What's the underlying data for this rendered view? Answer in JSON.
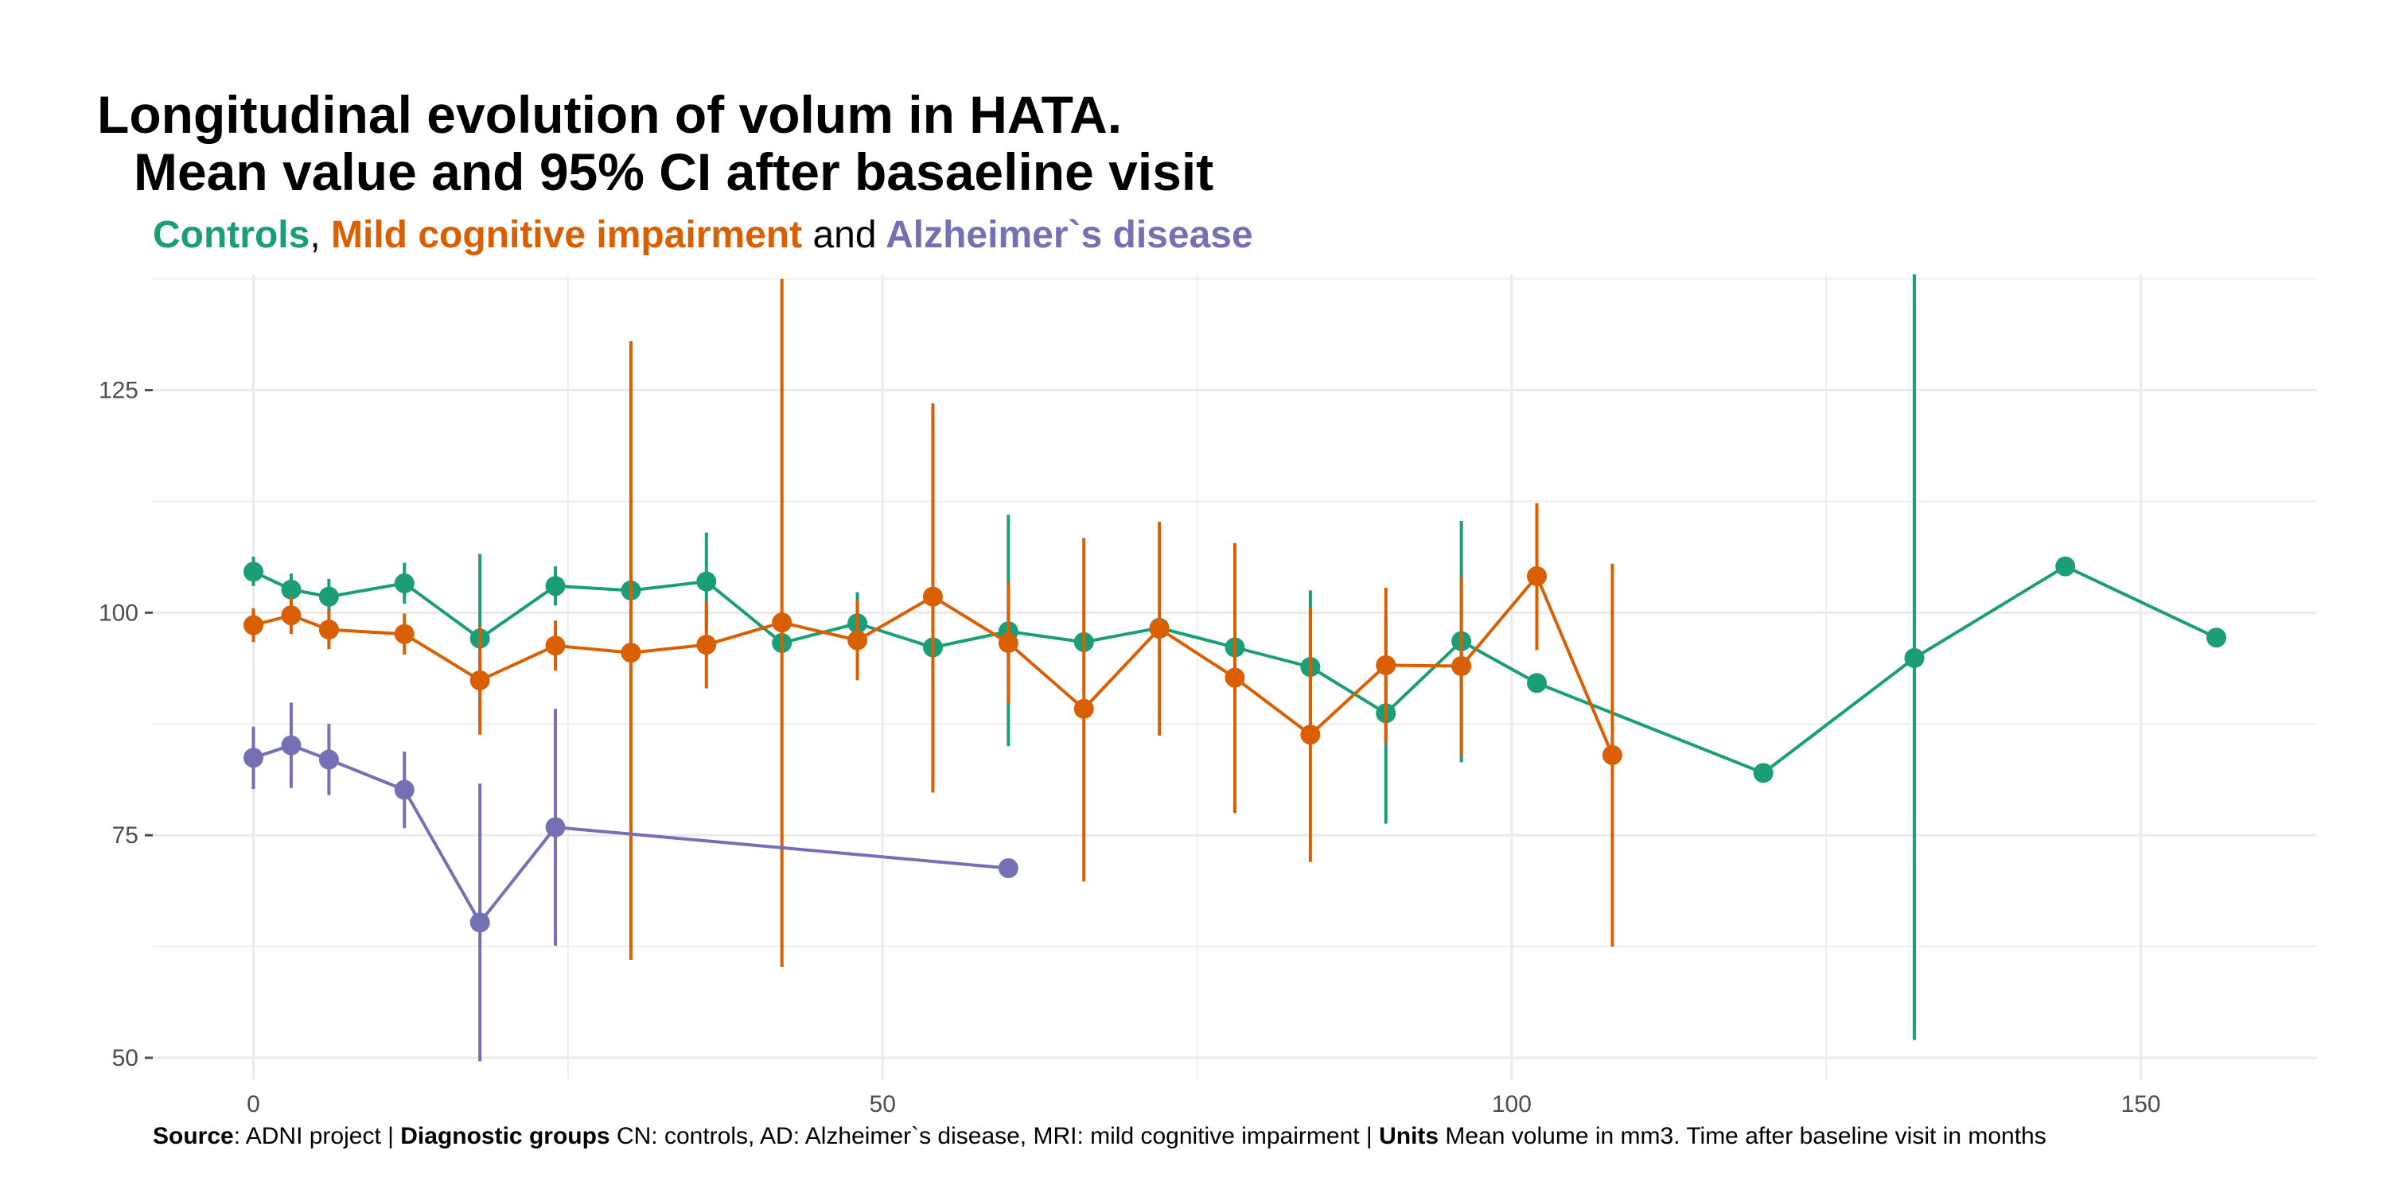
{
  "title_line1": "Longitudinal evolution of volum in HATA.",
  "title_line2": "Mean value and 95% CI after basaeline visit",
  "subtitle": {
    "g1": "Controls",
    "sep1": ",",
    "g2": "Mild cognitive impairment",
    "sep2": "and",
    "g3": "Alzheimer`s disease"
  },
  "caption": {
    "k1": "Source",
    "v1": ": ADNI project |",
    "k2": "Diagnostic groups",
    "v2": " CN: controls, AD: Alzheimer`s disease, MRI: mild cognitive impairment |",
    "k3": "Units",
    "v3": " Mean volume in mm3. Time after baseline visit in months"
  },
  "colors": {
    "controls": "#1b9e77",
    "mci": "#d95f02",
    "ad": "#7570b3",
    "grid": "#ebebeb",
    "axis_text": "#4d4d4d"
  },
  "chart_data": {
    "type": "line",
    "xlim": [
      -8,
      164
    ],
    "ylim": [
      47.5,
      138
    ],
    "x_ticks": [
      0,
      50,
      100,
      150
    ],
    "y_ticks": [
      50,
      75,
      100,
      125
    ],
    "x_tick_labels": [
      "0",
      "50",
      "100",
      "150"
    ],
    "y_tick_labels": [
      "50",
      "75",
      "100",
      "125"
    ],
    "grid": true,
    "legend": "none",
    "series": [
      {
        "name": "Controls",
        "color_key": "controls",
        "points": [
          {
            "x": 0,
            "y": 104.6,
            "lo": 103.0,
            "hi": 106.3
          },
          {
            "x": 3,
            "y": 102.6,
            "lo": 100.8,
            "hi": 104.4
          },
          {
            "x": 6,
            "y": 101.8,
            "lo": 99.8,
            "hi": 103.8
          },
          {
            "x": 12,
            "y": 103.3,
            "lo": 101.0,
            "hi": 105.6
          },
          {
            "x": 18,
            "y": 97.1,
            "lo": 87.5,
            "hi": 106.6
          },
          {
            "x": 24,
            "y": 103.0,
            "lo": 100.8,
            "hi": 105.2
          },
          {
            "x": 30,
            "y": 102.5
          },
          {
            "x": 36,
            "y": 103.5,
            "lo": 98.0,
            "hi": 109.0
          },
          {
            "x": 42,
            "y": 96.6
          },
          {
            "x": 48,
            "y": 98.8,
            "lo": 96.5,
            "hi": 102.3
          },
          {
            "x": 54,
            "y": 96.1
          },
          {
            "x": 60,
            "y": 97.9,
            "lo": 85.0,
            "hi": 111.0
          },
          {
            "x": 66,
            "y": 96.7
          },
          {
            "x": 72,
            "y": 98.3
          },
          {
            "x": 78,
            "y": 96.1
          },
          {
            "x": 84,
            "y": 93.9,
            "lo": 85.5,
            "hi": 102.5
          },
          {
            "x": 90,
            "y": 88.7,
            "lo": 76.3,
            "hi": 99.5
          },
          {
            "x": 96,
            "y": 96.8,
            "lo": 83.2,
            "hi": 110.3
          },
          {
            "x": 102,
            "y": 92.1
          },
          {
            "x": 120,
            "y": 82.0
          },
          {
            "x": 132,
            "y": 94.9,
            "lo": 52.0,
            "hi": 138.0
          },
          {
            "x": 144,
            "y": 105.2
          },
          {
            "x": 156,
            "y": 97.2
          }
        ]
      },
      {
        "name": "Mild cognitive impairment",
        "color_key": "mci",
        "points": [
          {
            "x": 0,
            "y": 98.6,
            "lo": 96.7,
            "hi": 100.5
          },
          {
            "x": 3,
            "y": 99.7,
            "lo": 97.6,
            "hi": 101.8
          },
          {
            "x": 6,
            "y": 98.1,
            "lo": 95.9,
            "hi": 100.3
          },
          {
            "x": 12,
            "y": 97.6,
            "lo": 95.3,
            "hi": 99.9
          },
          {
            "x": 18,
            "y": 92.4,
            "lo": 86.3,
            "hi": 98.5
          },
          {
            "x": 24,
            "y": 96.3,
            "lo": 93.5,
            "hi": 99.1
          },
          {
            "x": 30,
            "y": 95.5,
            "lo": 61.0,
            "hi": 130.5
          },
          {
            "x": 36,
            "y": 96.4,
            "lo": 91.5,
            "hi": 101.3
          },
          {
            "x": 42,
            "y": 98.9,
            "lo": 60.2,
            "hi": 137.5
          },
          {
            "x": 48,
            "y": 96.9,
            "lo": 92.4,
            "hi": 101.4
          },
          {
            "x": 54,
            "y": 101.8,
            "lo": 79.8,
            "hi": 123.5
          },
          {
            "x": 60,
            "y": 96.6,
            "lo": 89.8,
            "hi": 103.4
          },
          {
            "x": 66,
            "y": 89.2,
            "lo": 69.8,
            "hi": 108.4
          },
          {
            "x": 72,
            "y": 98.2,
            "lo": 86.2,
            "hi": 110.2
          },
          {
            "x": 78,
            "y": 92.7,
            "lo": 77.5,
            "hi": 107.8
          },
          {
            "x": 84,
            "y": 86.3,
            "lo": 72.0,
            "hi": 100.6
          },
          {
            "x": 90,
            "y": 94.1,
            "lo": 85.4,
            "hi": 102.8
          },
          {
            "x": 96,
            "y": 94.0,
            "lo": 84.0,
            "hi": 104.0
          },
          {
            "x": 102,
            "y": 104.1,
            "lo": 95.8,
            "hi": 112.3
          },
          {
            "x": 108,
            "y": 84.0,
            "lo": 62.5,
            "hi": 105.5
          }
        ]
      },
      {
        "name": "Alzheimer`s disease",
        "color_key": "ad",
        "points": [
          {
            "x": 0,
            "y": 83.7,
            "lo": 80.2,
            "hi": 87.2
          },
          {
            "x": 3,
            "y": 85.1,
            "lo": 80.3,
            "hi": 89.9
          },
          {
            "x": 6,
            "y": 83.5,
            "lo": 79.5,
            "hi": 87.5
          },
          {
            "x": 12,
            "y": 80.1,
            "lo": 75.8,
            "hi": 84.4
          },
          {
            "x": 18,
            "y": 65.2,
            "lo": 49.6,
            "hi": 80.8
          },
          {
            "x": 24,
            "y": 75.9,
            "lo": 62.6,
            "hi": 89.2
          },
          {
            "x": 60,
            "y": 71.3
          }
        ]
      }
    ]
  }
}
